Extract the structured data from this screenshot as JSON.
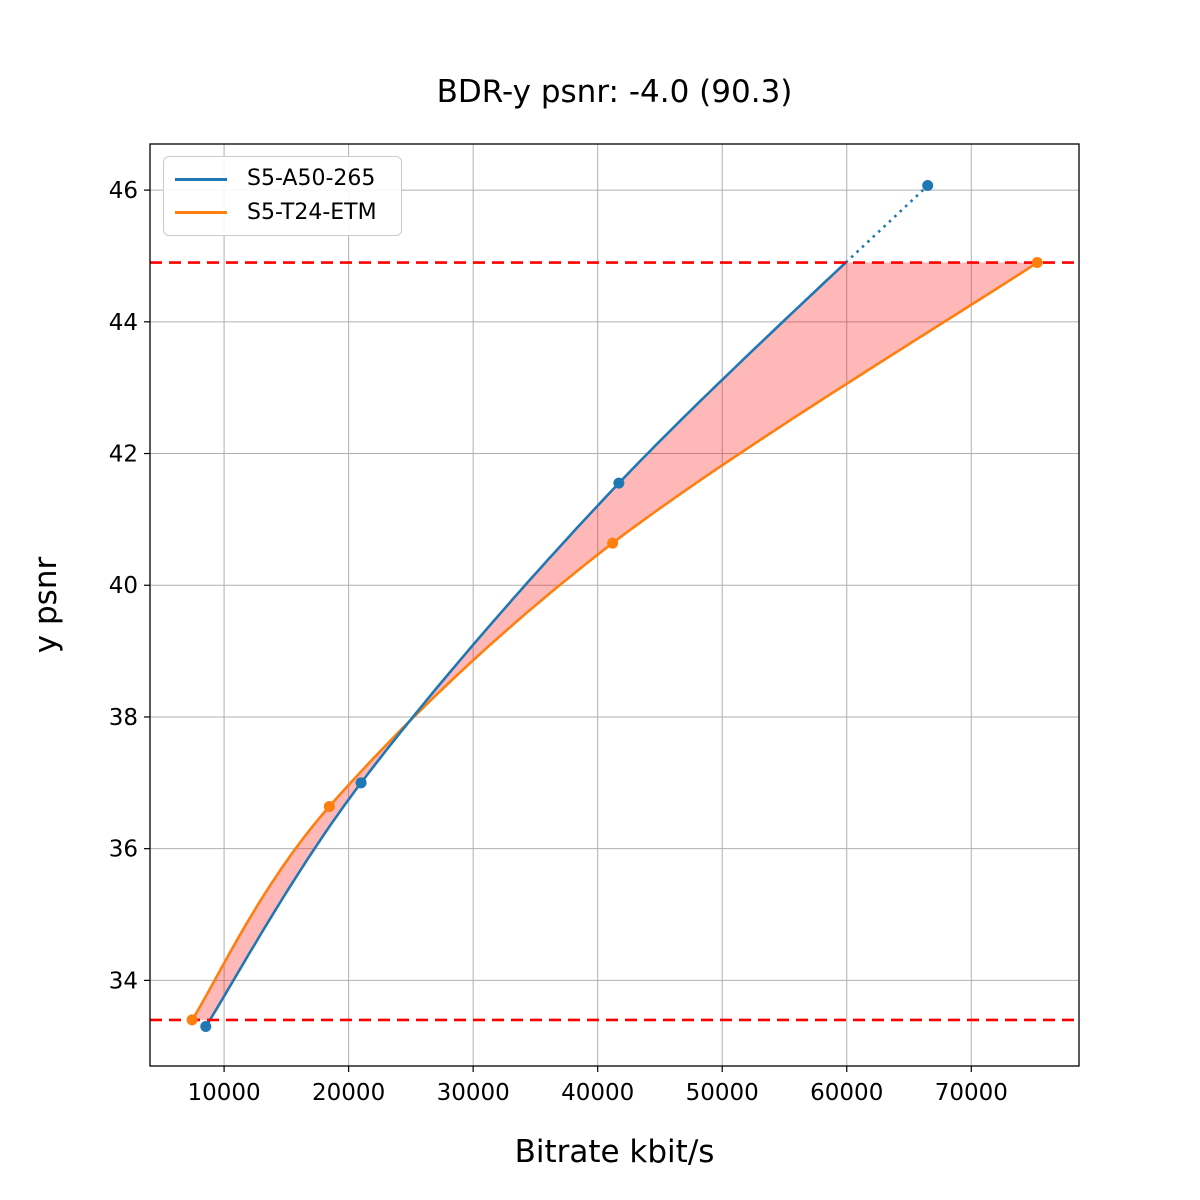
{
  "chart_data": {
    "type": "line",
    "title": "BDR-y psnr: -4.0 (90.3)",
    "xlabel": "Bitrate kbit/s",
    "ylabel": "y psnr",
    "xlim": [
      4050,
      78650
    ],
    "ylim": [
      32.7,
      46.7
    ],
    "xticks": [
      10000,
      20000,
      30000,
      40000,
      50000,
      60000,
      70000
    ],
    "yticks": [
      34,
      36,
      38,
      40,
      42,
      44,
      46
    ],
    "grid": true,
    "grid_color": "#b0b0b0",
    "legend_position": "upper-left",
    "series": [
      {
        "name": "S5-A50-265",
        "color": "#1f77b4",
        "points": [
          [
            8530,
            33.3
          ],
          [
            21000,
            37.0
          ],
          [
            41700,
            41.55
          ],
          [
            66500,
            46.07
          ]
        ],
        "line_style": "solid, dotted above upper overlap boundary"
      },
      {
        "name": "S5-T24-ETM",
        "color": "#ff7f0e",
        "points": [
          [
            7430,
            33.4
          ],
          [
            18450,
            36.64
          ],
          [
            41200,
            40.64
          ],
          [
            75300,
            44.9
          ]
        ],
        "line_style": "solid"
      }
    ],
    "overlap_lines": {
      "color": "#ff0000",
      "style": "dashed",
      "y_values": [
        44.9,
        33.4
      ]
    },
    "fill_between": {
      "color": "rgba(255,0,0,0.28)",
      "between": [
        "S5-A50-265",
        "S5-T24-ETM"
      ],
      "y_range": [
        33.4,
        44.9
      ]
    }
  }
}
